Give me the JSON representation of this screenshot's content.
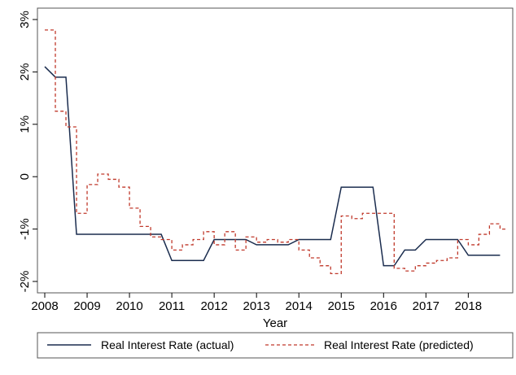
{
  "chart_data": {
    "type": "line",
    "title": "",
    "xlabel": "Year",
    "ylabel": "",
    "xlim": [
      2008,
      2018.8
    ],
    "ylim": [
      -2,
      3
    ],
    "x_ticks": [
      2008,
      2009,
      2010,
      2011,
      2012,
      2013,
      2014,
      2015,
      2016,
      2017,
      2018
    ],
    "x_tick_labels": [
      "2008",
      "2009",
      "2010",
      "2011",
      "2012",
      "2013",
      "2014",
      "2015",
      "2016",
      "2017",
      "2018"
    ],
    "y_ticks": [
      -2,
      -1,
      0,
      1,
      2,
      3
    ],
    "y_tick_labels": [
      "-2%",
      "-1%",
      "0",
      "1%",
      "2%",
      "3%"
    ],
    "grid": false,
    "legend_position": "bottom",
    "series": [
      {
        "name": "Real Interest Rate (actual)",
        "color": "#1a2c4e",
        "style": "solid",
        "points": [
          [
            2008.0,
            2.1
          ],
          [
            2008.25,
            1.9
          ],
          [
            2008.5,
            1.9
          ],
          [
            2008.75,
            -1.1
          ],
          [
            2009.0,
            -1.1
          ],
          [
            2009.5,
            -1.1
          ],
          [
            2010.0,
            -1.1
          ],
          [
            2010.5,
            -1.1
          ],
          [
            2010.75,
            -1.1
          ],
          [
            2011.0,
            -1.6
          ],
          [
            2011.25,
            -1.6
          ],
          [
            2011.5,
            -1.6
          ],
          [
            2011.75,
            -1.6
          ],
          [
            2012.0,
            -1.2
          ],
          [
            2012.25,
            -1.2
          ],
          [
            2012.5,
            -1.2
          ],
          [
            2012.75,
            -1.2
          ],
          [
            2013.0,
            -1.3
          ],
          [
            2013.5,
            -1.3
          ],
          [
            2013.75,
            -1.3
          ],
          [
            2014.0,
            -1.2
          ],
          [
            2014.5,
            -1.2
          ],
          [
            2014.75,
            -1.2
          ],
          [
            2015.0,
            -0.2
          ],
          [
            2015.25,
            -0.2
          ],
          [
            2015.5,
            -0.2
          ],
          [
            2015.75,
            -0.2
          ],
          [
            2016.0,
            -1.7
          ],
          [
            2016.25,
            -1.7
          ],
          [
            2016.5,
            -1.4
          ],
          [
            2016.75,
            -1.4
          ],
          [
            2017.0,
            -1.2
          ],
          [
            2017.25,
            -1.2
          ],
          [
            2017.5,
            -1.2
          ],
          [
            2017.75,
            -1.2
          ],
          [
            2018.0,
            -1.5
          ],
          [
            2018.25,
            -1.5
          ],
          [
            2018.5,
            -1.5
          ],
          [
            2018.75,
            -1.5
          ]
        ]
      },
      {
        "name": "Real Interest Rate (predicted)",
        "color": "#c0392b",
        "style": "dashed-step",
        "points": [
          [
            2008.0,
            2.8
          ],
          [
            2008.25,
            1.25
          ],
          [
            2008.5,
            0.95
          ],
          [
            2008.75,
            -0.7
          ],
          [
            2009.0,
            -0.15
          ],
          [
            2009.25,
            0.05
          ],
          [
            2009.5,
            -0.05
          ],
          [
            2009.75,
            -0.2
          ],
          [
            2010.0,
            -0.6
          ],
          [
            2010.25,
            -0.95
          ],
          [
            2010.5,
            -1.15
          ],
          [
            2010.75,
            -1.2
          ],
          [
            2011.0,
            -1.4
          ],
          [
            2011.25,
            -1.3
          ],
          [
            2011.5,
            -1.2
          ],
          [
            2011.75,
            -1.05
          ],
          [
            2012.0,
            -1.3
          ],
          [
            2012.25,
            -1.05
          ],
          [
            2012.5,
            -1.4
          ],
          [
            2012.75,
            -1.15
          ],
          [
            2013.0,
            -1.25
          ],
          [
            2013.25,
            -1.2
          ],
          [
            2013.5,
            -1.25
          ],
          [
            2013.75,
            -1.2
          ],
          [
            2014.0,
            -1.4
          ],
          [
            2014.25,
            -1.55
          ],
          [
            2014.5,
            -1.7
          ],
          [
            2014.75,
            -1.85
          ],
          [
            2015.0,
            -0.75
          ],
          [
            2015.25,
            -0.8
          ],
          [
            2015.5,
            -0.7
          ],
          [
            2015.75,
            -0.7
          ],
          [
            2016.0,
            -0.7
          ],
          [
            2016.25,
            -1.75
          ],
          [
            2016.5,
            -1.8
          ],
          [
            2016.75,
            -1.7
          ],
          [
            2017.0,
            -1.65
          ],
          [
            2017.25,
            -1.6
          ],
          [
            2017.5,
            -1.55
          ],
          [
            2017.75,
            -1.2
          ],
          [
            2018.0,
            -1.3
          ],
          [
            2018.25,
            -1.1
          ],
          [
            2018.5,
            -0.9
          ],
          [
            2018.75,
            -1.0
          ]
        ]
      }
    ]
  }
}
